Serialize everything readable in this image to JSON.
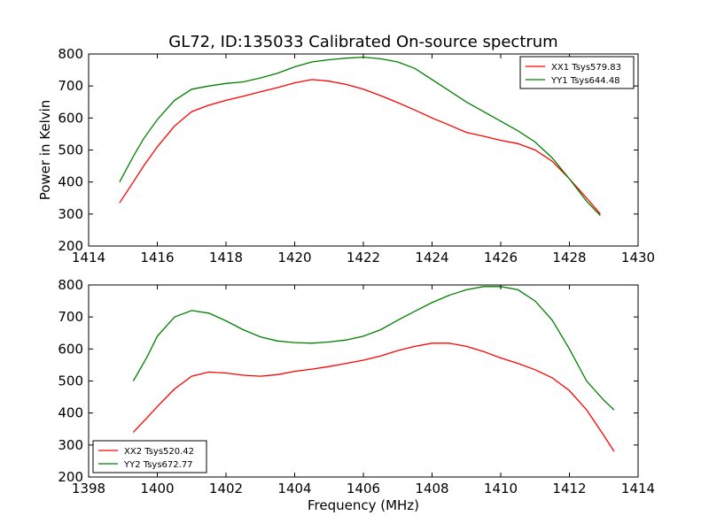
{
  "figure": {
    "title": "GL72, ID:135033 Calibrated On-source spectrum",
    "xlabel": "Frequency (MHz)",
    "ylabel": "Power in Kelvin"
  },
  "chart_data": [
    {
      "type": "line",
      "xlabel": "",
      "ylabel": "Power in Kelvin",
      "xlim": [
        1414,
        1430
      ],
      "ylim": [
        200,
        800
      ],
      "xticks": [
        1414,
        1416,
        1418,
        1420,
        1422,
        1424,
        1426,
        1428,
        1430
      ],
      "yticks": [
        200,
        300,
        400,
        500,
        600,
        700,
        800
      ],
      "grid": false,
      "legend": "top-right",
      "series": [
        {
          "name": "XX1 Tsys579.83",
          "color": "#ff0000",
          "x": [
            1414.9,
            1415.3,
            1415.6,
            1416.0,
            1416.5,
            1417.0,
            1417.5,
            1418.0,
            1418.5,
            1419.0,
            1419.5,
            1420.0,
            1420.5,
            1421.0,
            1421.5,
            1422.0,
            1422.5,
            1423.0,
            1423.5,
            1424.0,
            1424.5,
            1425.0,
            1425.5,
            1426.0,
            1426.5,
            1427.0,
            1427.5,
            1428.0,
            1428.5,
            1428.9
          ],
          "y": [
            335,
            400,
            450,
            510,
            575,
            620,
            640,
            655,
            668,
            682,
            695,
            710,
            720,
            715,
            705,
            690,
            670,
            648,
            625,
            600,
            578,
            555,
            543,
            530,
            520,
            500,
            465,
            410,
            350,
            300
          ]
        },
        {
          "name": "YY1 Tsys644.48",
          "color": "#008000",
          "x": [
            1414.9,
            1415.3,
            1415.6,
            1416.0,
            1416.5,
            1417.0,
            1417.5,
            1418.0,
            1418.5,
            1419.0,
            1419.5,
            1420.0,
            1420.5,
            1421.0,
            1421.5,
            1422.0,
            1422.5,
            1423.0,
            1423.5,
            1424.0,
            1424.5,
            1425.0,
            1425.5,
            1426.0,
            1426.5,
            1427.0,
            1427.5,
            1428.0,
            1428.5,
            1428.9
          ],
          "y": [
            400,
            480,
            535,
            595,
            655,
            690,
            700,
            708,
            713,
            725,
            740,
            760,
            775,
            782,
            787,
            790,
            785,
            775,
            755,
            720,
            685,
            650,
            620,
            590,
            560,
            525,
            475,
            410,
            340,
            295
          ]
        }
      ]
    },
    {
      "type": "line",
      "xlabel": "Frequency (MHz)",
      "ylabel": "",
      "xlim": [
        1398,
        1414
      ],
      "ylim": [
        200,
        800
      ],
      "xticks": [
        1398,
        1400,
        1402,
        1404,
        1406,
        1408,
        1410,
        1412,
        1414
      ],
      "yticks": [
        200,
        300,
        400,
        500,
        600,
        700,
        800
      ],
      "grid": false,
      "legend": "bottom-left",
      "series": [
        {
          "name": "XX2 Tsys520.42",
          "color": "#ff0000",
          "x": [
            1399.3,
            1399.7,
            1400.0,
            1400.5,
            1401.0,
            1401.5,
            1402.0,
            1402.5,
            1403.0,
            1403.5,
            1404.0,
            1404.5,
            1405.0,
            1405.5,
            1406.0,
            1406.5,
            1407.0,
            1407.5,
            1408.0,
            1408.5,
            1409.0,
            1409.5,
            1410.0,
            1410.5,
            1411.0,
            1411.5,
            1412.0,
            1412.5,
            1413.0,
            1413.3
          ],
          "y": [
            340,
            385,
            420,
            475,
            515,
            528,
            525,
            518,
            515,
            520,
            530,
            537,
            545,
            555,
            565,
            578,
            595,
            608,
            618,
            618,
            608,
            592,
            572,
            555,
            535,
            510,
            470,
            410,
            330,
            280
          ]
        },
        {
          "name": "YY2 Tsys672.77",
          "color": "#008000",
          "x": [
            1399.3,
            1399.7,
            1400.0,
            1400.5,
            1401.0,
            1401.5,
            1402.0,
            1402.5,
            1403.0,
            1403.5,
            1404.0,
            1404.5,
            1405.0,
            1405.5,
            1406.0,
            1406.5,
            1407.0,
            1407.5,
            1408.0,
            1408.5,
            1409.0,
            1409.5,
            1410.0,
            1410.5,
            1411.0,
            1411.5,
            1412.0,
            1412.5,
            1413.0,
            1413.3
          ],
          "y": [
            500,
            575,
            640,
            700,
            720,
            712,
            688,
            660,
            638,
            625,
            620,
            618,
            622,
            628,
            640,
            660,
            690,
            718,
            745,
            768,
            785,
            795,
            795,
            785,
            750,
            690,
            600,
            500,
            440,
            410
          ]
        }
      ]
    }
  ]
}
